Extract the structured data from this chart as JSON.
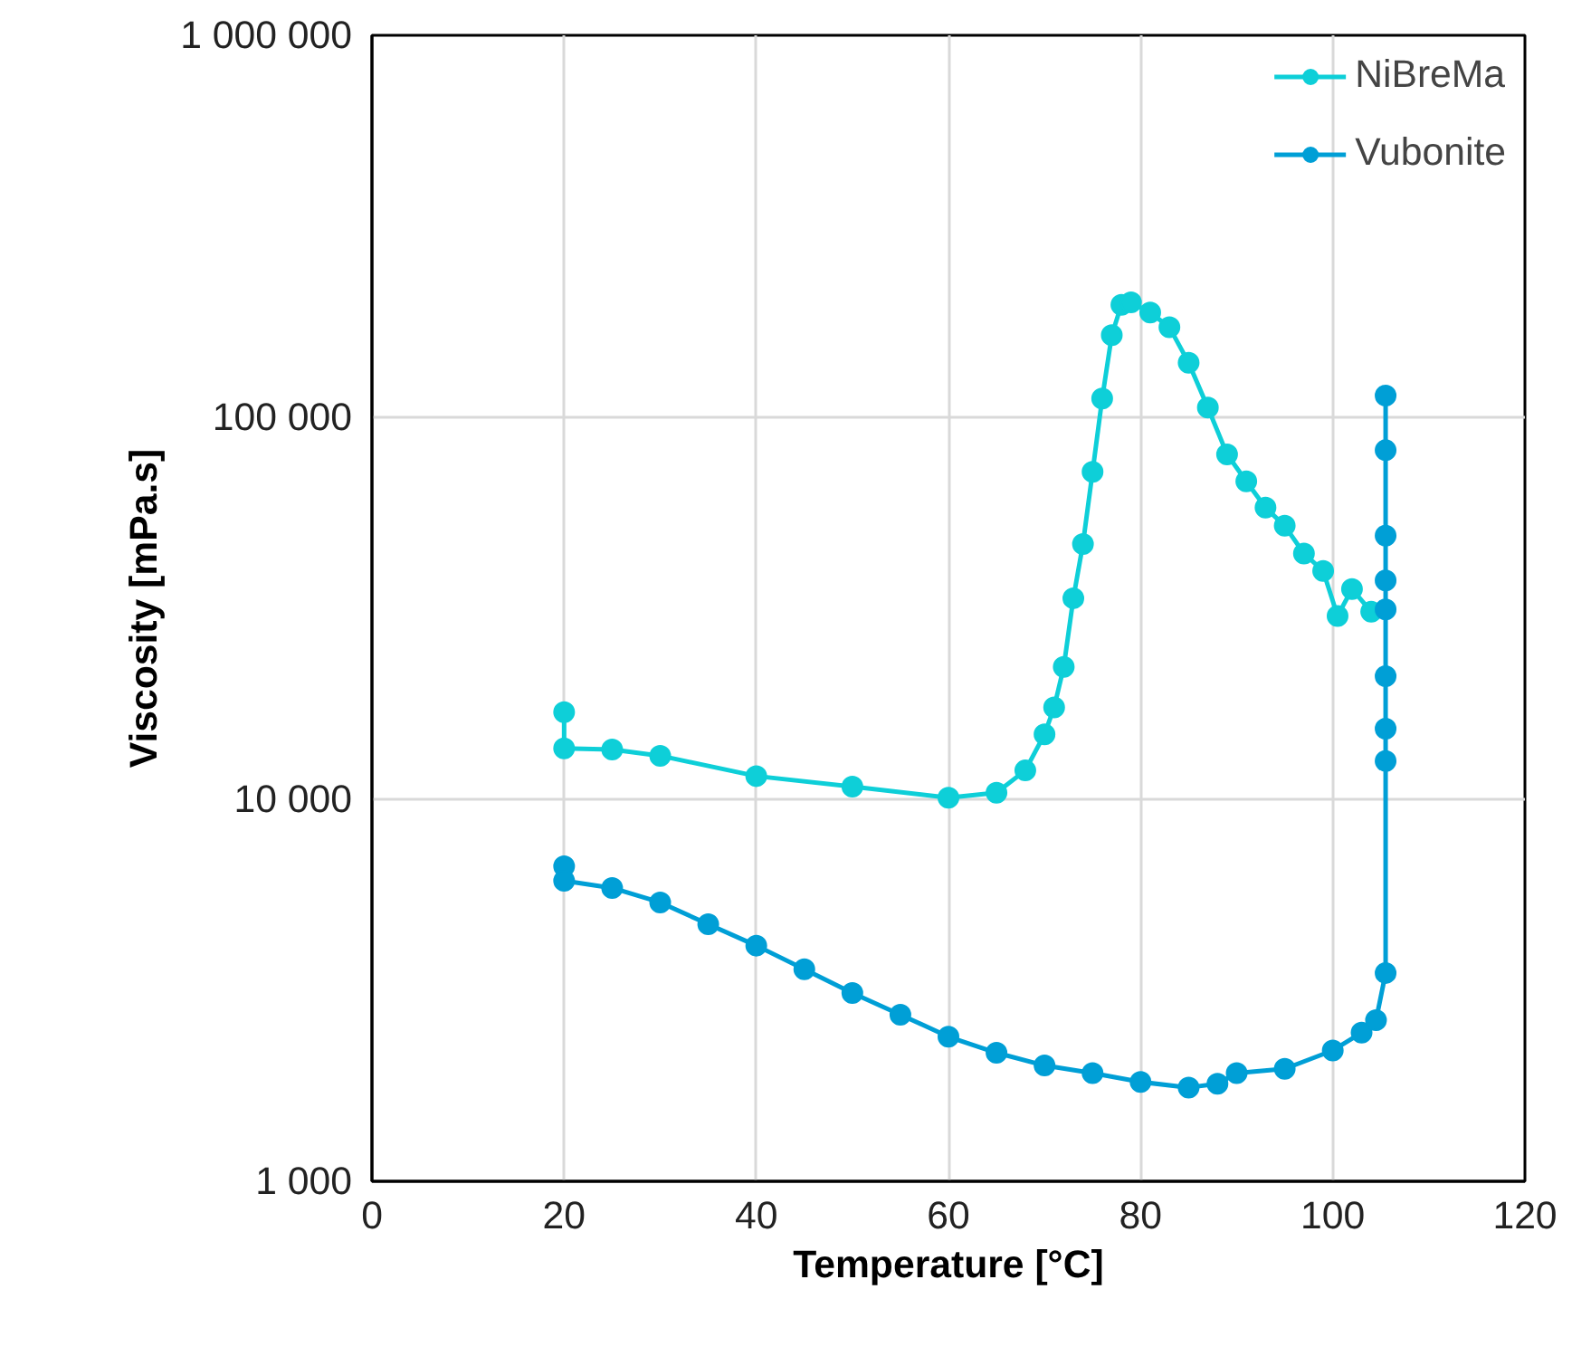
{
  "chart_data": {
    "type": "line",
    "xlabel": "Temperature [°C]",
    "ylabel": "Viscosity [mPa.s]",
    "xlim": [
      0,
      120
    ],
    "xticks": [
      0,
      20,
      40,
      60,
      80,
      100,
      120
    ],
    "ylim": [
      1000,
      1000000
    ],
    "yticks": [
      {
        "value": 1000,
        "label": "1 000"
      },
      {
        "value": 10000,
        "label": "10 000"
      },
      {
        "value": 100000,
        "label": "100 000"
      },
      {
        "value": 1000000,
        "label": "1 000 000"
      }
    ],
    "log": true,
    "grid": true,
    "legend": "top right",
    "marker": "circle",
    "line_style": "solid",
    "series": [
      {
        "name": "NiBreMa",
        "color": "#0ecfd8",
        "x": [
          20,
          20,
          25,
          30,
          40,
          50,
          60,
          65,
          68,
          70,
          71,
          72,
          73,
          74,
          75,
          76,
          77,
          78,
          79,
          81,
          83,
          85,
          87,
          89,
          91,
          93,
          95,
          97,
          99,
          100.5,
          102,
          104
        ],
        "values": [
          16900,
          13600,
          13500,
          13000,
          11500,
          10800,
          10100,
          10400,
          11900,
          14800,
          17400,
          22200,
          33600,
          46600,
          72000,
          112000,
          164000,
          197000,
          200000,
          188000,
          172000,
          139000,
          106000,
          80000,
          68000,
          58000,
          52000,
          44000,
          39600,
          30200,
          35500,
          31000
        ]
      },
      {
        "name": "Vubonite",
        "color": "#009fd6",
        "x": [
          20,
          20,
          25,
          30,
          35,
          40,
          45,
          50,
          55,
          60,
          65,
          70,
          75,
          80,
          85,
          88,
          90,
          95,
          100,
          103,
          104.5,
          105.5,
          105.5,
          105.5,
          105.5,
          105.5,
          105.5,
          105.5,
          105.5,
          105.5
        ],
        "values": [
          6680,
          6120,
          5860,
          5370,
          4710,
          4140,
          3590,
          3110,
          2730,
          2390,
          2170,
          2010,
          1920,
          1820,
          1760,
          1800,
          1920,
          1970,
          2200,
          2450,
          2640,
          3510,
          12600,
          15300,
          21000,
          31400,
          37400,
          49000,
          82000,
          114000
        ]
      }
    ]
  }
}
